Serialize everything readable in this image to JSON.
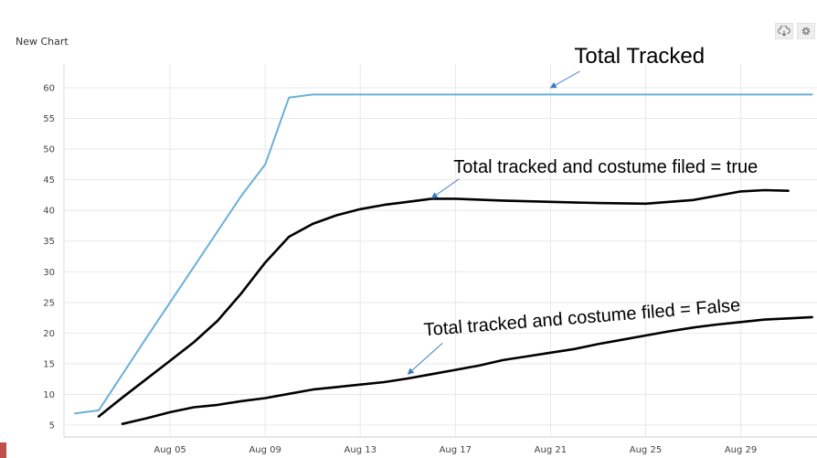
{
  "header": {
    "title": "New Chart"
  },
  "toolbar": {
    "icons": [
      "cloud-download-icon",
      "gear-icon"
    ]
  },
  "colors": {
    "total": "#6ab0d8",
    "annotation": "#000000",
    "grid": "#e8e8e8",
    "accent_mark": "#c0504d"
  },
  "chart_data": {
    "type": "line",
    "title": "New Chart",
    "xlabel": "",
    "ylabel": "",
    "x_domain": [
      "2023-08-01",
      "2023-09-01"
    ],
    "ylim": [
      4,
      64
    ],
    "y_ticks": [
      5,
      10,
      15,
      20,
      25,
      30,
      35,
      40,
      45,
      50,
      55,
      60
    ],
    "x_ticks": [
      {
        "date": "2023-08-05",
        "label": "Aug 05"
      },
      {
        "date": "2023-08-09",
        "label": "Aug 09"
      },
      {
        "date": "2023-08-13",
        "label": "Aug 13"
      },
      {
        "date": "2023-08-17",
        "label": "Aug 17"
      },
      {
        "date": "2023-08-21",
        "label": "Aug 21"
      },
      {
        "date": "2023-08-25",
        "label": "Aug 25"
      },
      {
        "date": "2023-08-29",
        "label": "Aug 29"
      }
    ],
    "grid": true,
    "series": [
      {
        "key": "total",
        "color": "#6ab0d8",
        "width": 2,
        "points": [
          [
            "2023-08-01",
            6.9
          ],
          [
            "2023-08-02",
            7.4
          ],
          [
            "2023-08-04",
            19.2
          ],
          [
            "2023-08-06",
            30.8
          ],
          [
            "2023-08-08",
            42.4
          ],
          [
            "2023-08-09",
            47.5
          ],
          [
            "2023-08-10",
            58.4
          ],
          [
            "2023-08-11",
            58.9
          ],
          [
            "2023-08-15",
            58.9
          ],
          [
            "2023-08-20",
            58.9
          ],
          [
            "2023-08-25",
            58.9
          ],
          [
            "2023-08-30",
            58.9
          ],
          [
            "2023-09-01",
            58.9
          ]
        ]
      },
      {
        "key": "costume-true",
        "color": "#000000",
        "width": 2.6,
        "points": [
          [
            "2023-08-02",
            6.4
          ],
          [
            "2023-08-03",
            9.5
          ],
          [
            "2023-08-04",
            12.5
          ],
          [
            "2023-08-05",
            15.5
          ],
          [
            "2023-08-06",
            18.5
          ],
          [
            "2023-08-07",
            22
          ],
          [
            "2023-08-08",
            26.5
          ],
          [
            "2023-08-09",
            31.5
          ],
          [
            "2023-08-10",
            35.7
          ],
          [
            "2023-08-11",
            37.8
          ],
          [
            "2023-08-12",
            39.2
          ],
          [
            "2023-08-13",
            40.2
          ],
          [
            "2023-08-14",
            40.9
          ],
          [
            "2023-08-15",
            41.4
          ],
          [
            "2023-08-16",
            41.9
          ],
          [
            "2023-08-17",
            41.9
          ],
          [
            "2023-08-19",
            41.6
          ],
          [
            "2023-08-21",
            41.4
          ],
          [
            "2023-08-23",
            41.2
          ],
          [
            "2023-08-25",
            41.1
          ],
          [
            "2023-08-27",
            41.7
          ],
          [
            "2023-08-28",
            42.4
          ],
          [
            "2023-08-29",
            43.1
          ],
          [
            "2023-08-30",
            43.3
          ],
          [
            "2023-08-31",
            43.2
          ]
        ]
      },
      {
        "key": "costume-false",
        "color": "#000000",
        "width": 2.6,
        "points": [
          [
            "2023-08-03",
            5.2
          ],
          [
            "2023-08-04",
            6.1
          ],
          [
            "2023-08-05",
            7.1
          ],
          [
            "2023-08-06",
            7.9
          ],
          [
            "2023-08-07",
            8.3
          ],
          [
            "2023-08-08",
            8.9
          ],
          [
            "2023-08-09",
            9.4
          ],
          [
            "2023-08-10",
            10.1
          ],
          [
            "2023-08-11",
            10.8
          ],
          [
            "2023-08-12",
            11.2
          ],
          [
            "2023-08-13",
            11.6
          ],
          [
            "2023-08-14",
            12.0
          ],
          [
            "2023-08-15",
            12.6
          ],
          [
            "2023-08-16",
            13.3
          ],
          [
            "2023-08-17",
            14.0
          ],
          [
            "2023-08-18",
            14.7
          ],
          [
            "2023-08-19",
            15.6
          ],
          [
            "2023-08-20",
            16.2
          ],
          [
            "2023-08-21",
            16.8
          ],
          [
            "2023-08-22",
            17.4
          ],
          [
            "2023-08-23",
            18.2
          ],
          [
            "2023-08-24",
            18.9
          ],
          [
            "2023-08-25",
            19.6
          ],
          [
            "2023-08-26",
            20.3
          ],
          [
            "2023-08-27",
            20.9
          ],
          [
            "2023-08-28",
            21.4
          ],
          [
            "2023-08-29",
            21.8
          ],
          [
            "2023-08-30",
            22.2
          ],
          [
            "2023-08-31",
            22.4
          ],
          [
            "2023-09-01",
            22.6
          ]
        ]
      }
    ],
    "annotations": [
      {
        "key": "total",
        "text": "Total Tracked",
        "size": 24,
        "rotate": 0,
        "arrow_to": [
          "2023-08-21",
          60
        ],
        "anchor": "text-bottom-left"
      },
      {
        "key": "costume-true",
        "text": "Total tracked and costume filed = true",
        "size": 20,
        "rotate": 0,
        "arrow_to": [
          "2023-08-16",
          42
        ],
        "anchor": "text-bottom-left"
      },
      {
        "key": "costume-false",
        "text": "Total tracked and costume filed = False",
        "size": 20,
        "rotate": -4.5,
        "arrow_to": [
          "2023-08-15",
          13.3
        ],
        "anchor": "text-bottom-left"
      }
    ]
  }
}
